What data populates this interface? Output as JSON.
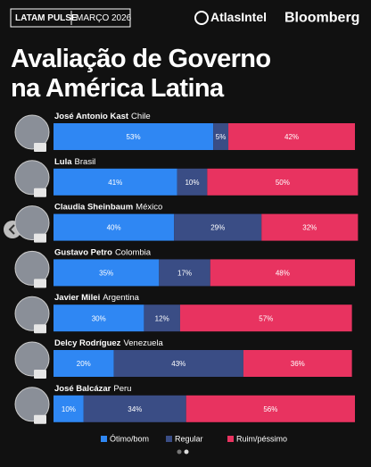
{
  "header": {
    "tag": "LATAM PULSE",
    "date": "MARÇO 2026",
    "brand1": "AtlasIntel",
    "brand2": "Bloomberg"
  },
  "chart_data": {
    "type": "stacked-barh",
    "title": "Avaliação de Governo na América Latina",
    "categories": [
      "José Antonio Kast",
      "Lula",
      "Claudia Sheinbaum",
      "Gustavo Petro",
      "Javier Milei",
      "Delcy Rodríguez",
      "José Balcázar"
    ],
    "countries": [
      "Chile",
      "Brasil",
      "México",
      "Colombia",
      "Argentina",
      "Venezuela",
      "Peru"
    ],
    "xlim": [
      0,
      100
    ],
    "series": [
      {
        "name": "Ótimo/bom",
        "color": "#2f87f3",
        "values": [
          53,
          41,
          40,
          35,
          30,
          20,
          10
        ],
        "value_labels": [
          "53%",
          "41%",
          "40%",
          "35%",
          "30%",
          "20%",
          "10%"
        ]
      },
      {
        "name": "Regular",
        "color": "#3a4d85",
        "values": [
          5,
          10,
          29,
          17,
          12,
          43,
          34
        ],
        "value_labels": [
          "5%",
          "10%",
          "29%",
          "17%",
          "12%",
          "43%",
          "34%"
        ]
      },
      {
        "name": "Ruim/péssimo",
        "color": "#e83360",
        "values": [
          42,
          50,
          32,
          48,
          57,
          36,
          56
        ],
        "value_labels": [
          "42%",
          "50%",
          "32%",
          "48%",
          "57%",
          "36%",
          "56%"
        ]
      }
    ]
  }
}
